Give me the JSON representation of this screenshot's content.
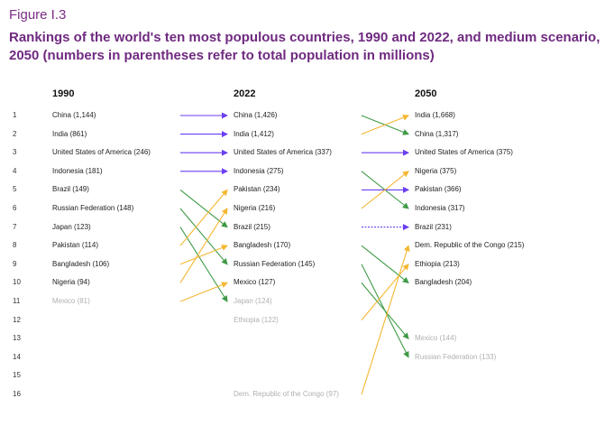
{
  "figure_label": "Figure I.3",
  "title": "Rankings of the world's ten most populous countries, 1990 and 2022, and medium scenario, 2050 (numbers in parentheses refer to total population in millions)",
  "colors": {
    "rise": "#f5b731",
    "fall": "#3f9a46",
    "same": "#6a3ff2",
    "faded_text": "#b0b0b0"
  },
  "ranks": [
    "1",
    "2",
    "3",
    "4",
    "5",
    "6",
    "7",
    "8",
    "9",
    "10",
    "11",
    "12",
    "13",
    "14",
    "15",
    "16"
  ],
  "columns": [
    {
      "year": "1990",
      "entries": [
        {
          "rank": 1,
          "label": "China (1,144)"
        },
        {
          "rank": 2,
          "label": "India (861)"
        },
        {
          "rank": 3,
          "label": "United States of America (246)"
        },
        {
          "rank": 4,
          "label": "Indonesia (181)"
        },
        {
          "rank": 5,
          "label": "Brazil (149)"
        },
        {
          "rank": 6,
          "label": "Russian Federation (148)"
        },
        {
          "rank": 7,
          "label": "Japan (123)"
        },
        {
          "rank": 8,
          "label": "Pakistan (114)"
        },
        {
          "rank": 9,
          "label": "Bangladesh (106)"
        },
        {
          "rank": 10,
          "label": "Nigeria (94)"
        },
        {
          "rank": 11,
          "label": "Mexico (81)",
          "faded": true
        }
      ]
    },
    {
      "year": "2022",
      "entries": [
        {
          "rank": 1,
          "label": "China (1,426)"
        },
        {
          "rank": 2,
          "label": "India (1,412)"
        },
        {
          "rank": 3,
          "label": "United States of America (337)"
        },
        {
          "rank": 4,
          "label": "Indonesia (275)"
        },
        {
          "rank": 5,
          "label": "Pakistan (234)"
        },
        {
          "rank": 6,
          "label": "Nigeria (216)"
        },
        {
          "rank": 7,
          "label": "Brazil (215)"
        },
        {
          "rank": 8,
          "label": "Bangladesh (170)"
        },
        {
          "rank": 9,
          "label": "Russian Federation (145)"
        },
        {
          "rank": 10,
          "label": "Mexico (127)"
        },
        {
          "rank": 11,
          "label": "Japan (124)",
          "faded": true
        },
        {
          "rank": 12,
          "label": "Ethiopia (122)",
          "faded": true
        },
        {
          "rank": 16,
          "label": "Dem. Republic of the Congo (97)",
          "faded": true
        }
      ]
    },
    {
      "year": "2050",
      "entries": [
        {
          "rank": 1,
          "label": "India (1,668)"
        },
        {
          "rank": 2,
          "label": "China (1,317)"
        },
        {
          "rank": 3,
          "label": "United States of America (375)"
        },
        {
          "rank": 4,
          "label": "Nigeria (375)"
        },
        {
          "rank": 5,
          "label": "Pakistan (366)"
        },
        {
          "rank": 6,
          "label": "Indonesia (317)"
        },
        {
          "rank": 7,
          "label": "Brazil (231)"
        },
        {
          "rank": 8,
          "label": "Dem. Republic of the Congo (215)"
        },
        {
          "rank": 9,
          "label": "Ethiopia (213)"
        },
        {
          "rank": 10,
          "label": "Bangladesh (204)"
        },
        {
          "rank": 13,
          "label": "Mexico (144)",
          "faded": true
        },
        {
          "rank": 14,
          "label": "Russian Federation (133)",
          "faded": true
        }
      ]
    }
  ],
  "transitions": [
    {
      "from_year": "1990",
      "to_year": "2022",
      "moves": [
        {
          "from": 1,
          "to": 1,
          "kind": "same"
        },
        {
          "from": 2,
          "to": 2,
          "kind": "same"
        },
        {
          "from": 3,
          "to": 3,
          "kind": "same"
        },
        {
          "from": 4,
          "to": 4,
          "kind": "same"
        },
        {
          "from": 5,
          "to": 7,
          "kind": "fall"
        },
        {
          "from": 6,
          "to": 9,
          "kind": "fall"
        },
        {
          "from": 7,
          "to": 11,
          "kind": "fall"
        },
        {
          "from": 8,
          "to": 5,
          "kind": "rise"
        },
        {
          "from": 9,
          "to": 8,
          "kind": "rise"
        },
        {
          "from": 10,
          "to": 6,
          "kind": "rise"
        },
        {
          "from": 11,
          "to": 10,
          "kind": "rise"
        }
      ]
    },
    {
      "from_year": "2022",
      "to_year": "2050",
      "moves": [
        {
          "from": 1,
          "to": 2,
          "kind": "fall"
        },
        {
          "from": 2,
          "to": 1,
          "kind": "rise"
        },
        {
          "from": 3,
          "to": 3,
          "kind": "same"
        },
        {
          "from": 4,
          "to": 6,
          "kind": "fall"
        },
        {
          "from": 5,
          "to": 5,
          "kind": "same"
        },
        {
          "from": 6,
          "to": 4,
          "kind": "rise"
        },
        {
          "from": 7,
          "to": 7,
          "kind": "same",
          "dashed": true
        },
        {
          "from": 8,
          "to": 10,
          "kind": "fall"
        },
        {
          "from": 9,
          "to": 14,
          "kind": "fall"
        },
        {
          "from": 10,
          "to": 13,
          "kind": "fall"
        },
        {
          "from": 12,
          "to": 9,
          "kind": "rise"
        },
        {
          "from": 16,
          "to": 8,
          "kind": "rise"
        }
      ]
    }
  ]
}
